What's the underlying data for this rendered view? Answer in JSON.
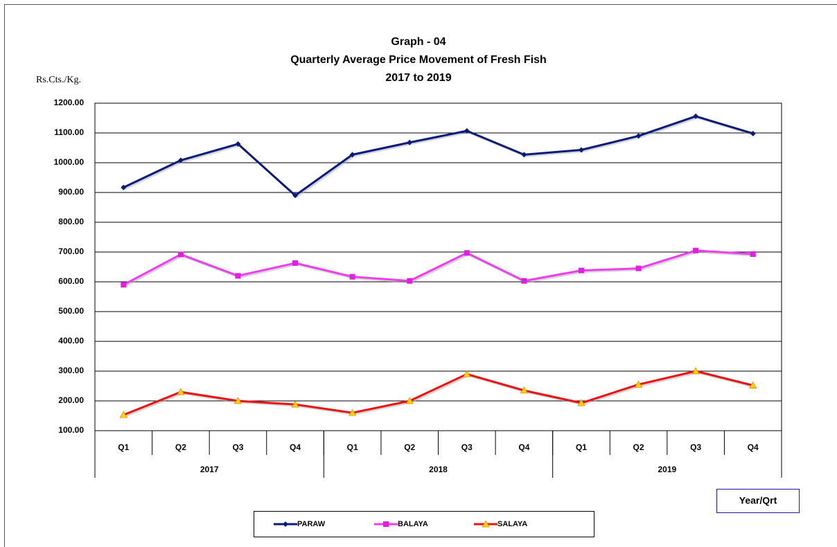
{
  "chart_data": {
    "type": "line",
    "title_lines": [
      "Graph - 04",
      "Quarterly  Average Price Movement of Fresh Fish",
      "2017 to 2019"
    ],
    "y_label": "Rs.Cts./Kg.",
    "x_label": "Year/Qrt",
    "categories": [
      "Q1",
      "Q2",
      "Q3",
      "Q4",
      "Q1",
      "Q2",
      "Q3",
      "Q4",
      "Q1",
      "Q2",
      "Q3",
      "Q4"
    ],
    "year_groups": [
      "2017",
      "2018",
      "2019"
    ],
    "ylim": [
      100,
      1200
    ],
    "yticks": [
      {
        "value": 100,
        "label": "100.00"
      },
      {
        "value": 200,
        "label": "200.00"
      },
      {
        "value": 300,
        "label": "300.00"
      },
      {
        "value": 400,
        "label": "400.00"
      },
      {
        "value": 500,
        "label": "500.00"
      },
      {
        "value": 600,
        "label": "600.00"
      },
      {
        "value": 700,
        "label": "700.00"
      },
      {
        "value": 800,
        "label": "800.00"
      },
      {
        "value": 900,
        "label": "900.00"
      },
      {
        "value": 1000,
        "label": "1000.00"
      },
      {
        "value": 1100,
        "label": "1100.00"
      },
      {
        "value": 1200,
        "label": "1200.00"
      }
    ],
    "grid": true,
    "legend": "bottom",
    "series": [
      {
        "name": "PARAW",
        "color": "#0a1a7a",
        "marker": "diamond",
        "marker_color": "#0a1a7a",
        "values": [
          917,
          1008,
          1063,
          890,
          1027,
          1068,
          1107,
          1027,
          1043,
          1090,
          1156,
          1098
        ]
      },
      {
        "name": "BALAYA",
        "color": "#f03cf0",
        "marker": "square",
        "marker_color": "#e020e0",
        "values": [
          590,
          692,
          620,
          663,
          617,
          603,
          697,
          603,
          638,
          645,
          705,
          693
        ]
      },
      {
        "name": "SALAYA",
        "color": "#ee1111",
        "marker": "triangle",
        "marker_color": "#ffd400",
        "values": [
          153,
          230,
          200,
          188,
          160,
          200,
          290,
          235,
          193,
          255,
          300,
          252
        ]
      }
    ]
  }
}
